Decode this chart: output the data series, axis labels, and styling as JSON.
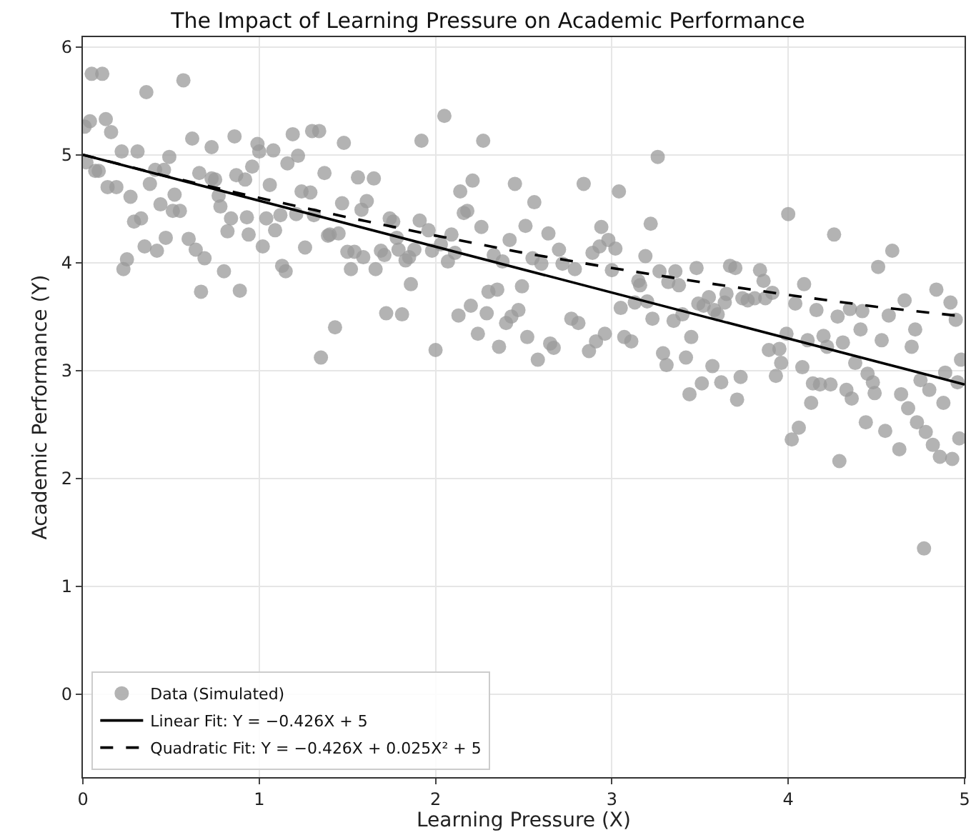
{
  "chart_data": {
    "type": "scatter",
    "title": "The Impact of Learning Pressure on Academic Performance",
    "xlabel": "Learning Pressure (X)",
    "ylabel": "Academic Performance (Y)",
    "xlim": [
      0,
      5
    ],
    "ylim": [
      -0.77,
      6.09
    ],
    "xticks": [
      0,
      1,
      2,
      3,
      4,
      5
    ],
    "yticks": [
      0,
      1,
      2,
      3,
      4,
      5,
      6
    ],
    "grid": true,
    "legend": "bottom left",
    "series": [
      {
        "name": "Data (Simulated)",
        "marker": "circle",
        "color": "#999999",
        "x": [
          0.05,
          0.11,
          0.04,
          0.01,
          0.13,
          0.16,
          0.36,
          0.57,
          0.02,
          0.07,
          0.09,
          0.14,
          0.19,
          0.22,
          0.31,
          0.27,
          0.29,
          0.33,
          0.38,
          0.41,
          0.46,
          0.49,
          0.44,
          0.52,
          0.51,
          0.55,
          0.25,
          0.23,
          0.35,
          0.42,
          0.47,
          0.6,
          0.64,
          0.69,
          0.62,
          0.73,
          0.66,
          0.73,
          0.75,
          0.77,
          0.78,
          0.84,
          0.82,
          0.8,
          0.67,
          0.89,
          0.86,
          0.87,
          0.92,
          0.96,
          0.99,
          1.0,
          1.08,
          0.93,
          0.94,
          1.02,
          1.04,
          1.06,
          1.09,
          1.12,
          1.13,
          1.15,
          1.16,
          1.19,
          1.22,
          1.24,
          1.29,
          1.21,
          1.26,
          1.3,
          1.34,
          1.37,
          1.31,
          1.4,
          1.43,
          1.35,
          1.48,
          1.56,
          1.65,
          1.61,
          1.58,
          1.47,
          1.39,
          1.45,
          1.5,
          1.54,
          1.59,
          1.52,
          1.66,
          1.69,
          1.71,
          1.74,
          1.76,
          1.78,
          1.79,
          1.83,
          1.85,
          1.88,
          1.86,
          1.91,
          1.92,
          1.96,
          1.98,
          2.03,
          2.05,
          2.09,
          2.07,
          2.11,
          1.72,
          1.81,
          2.0,
          2.14,
          2.21,
          2.16,
          2.18,
          2.26,
          2.13,
          2.2,
          2.24,
          2.29,
          2.3,
          2.35,
          2.27,
          2.33,
          2.38,
          2.36,
          2.42,
          2.4,
          2.43,
          2.47,
          2.45,
          2.51,
          2.49,
          2.52,
          2.56,
          2.55,
          2.6,
          2.64,
          2.58,
          2.65,
          2.67,
          2.7,
          2.72,
          2.77,
          2.81,
          2.79,
          2.84,
          2.87,
          2.91,
          2.89,
          2.93,
          2.96,
          2.94,
          2.98,
          3.02,
          3.0,
          3.26,
          3.04,
          3.22,
          3.19,
          3.27,
          3.36,
          3.15,
          3.16,
          3.32,
          3.38,
          3.48,
          3.67,
          3.7,
          3.84,
          3.86,
          3.91,
          3.05,
          3.13,
          3.2,
          3.23,
          3.35,
          3.4,
          3.49,
          3.52,
          3.55,
          3.58,
          3.6,
          3.64,
          3.65,
          3.74,
          3.77,
          3.81,
          3.87,
          3.07,
          3.11,
          3.29,
          3.31,
          3.42,
          3.45,
          3.57,
          3.51,
          3.44,
          3.62,
          3.73,
          3.71,
          3.89,
          3.95,
          3.96,
          3.93,
          4.0,
          4.04,
          4.09,
          3.99,
          4.08,
          4.11,
          4.14,
          4.18,
          4.24,
          4.13,
          4.06,
          4.02,
          4.16,
          4.2,
          4.22,
          4.26,
          4.28,
          4.31,
          4.33,
          4.36,
          4.35,
          4.38,
          4.42,
          4.41,
          4.29,
          4.44,
          4.45,
          4.48,
          4.49,
          4.51,
          4.53,
          4.55,
          4.59,
          4.57,
          4.63,
          4.64,
          4.66,
          4.68,
          4.7,
          4.72,
          4.73,
          4.75,
          4.77,
          4.78,
          4.8,
          4.82,
          4.84,
          4.86,
          4.88,
          4.89,
          4.92,
          4.93,
          4.95,
          4.96,
          4.97,
          4.98
        ],
        "values": [
          5.75,
          5.75,
          5.31,
          5.26,
          5.33,
          5.21,
          5.58,
          5.69,
          4.93,
          4.85,
          4.85,
          4.7,
          4.7,
          5.03,
          5.03,
          4.61,
          4.38,
          4.41,
          4.73,
          4.86,
          4.86,
          4.98,
          4.54,
          4.63,
          4.48,
          4.48,
          4.03,
          3.94,
          4.15,
          4.11,
          4.23,
          4.22,
          4.12,
          4.04,
          5.15,
          5.07,
          4.83,
          4.78,
          4.77,
          4.62,
          4.52,
          4.41,
          4.29,
          3.92,
          3.73,
          3.74,
          5.17,
          4.81,
          4.77,
          4.89,
          5.1,
          5.03,
          5.04,
          4.42,
          4.26,
          4.15,
          4.41,
          4.72,
          4.3,
          4.44,
          3.97,
          3.92,
          4.92,
          5.19,
          4.99,
          4.66,
          4.65,
          4.45,
          4.14,
          5.22,
          5.22,
          4.83,
          4.44,
          4.26,
          3.4,
          3.12,
          5.11,
          4.79,
          4.78,
          4.57,
          4.49,
          4.55,
          4.25,
          4.27,
          4.1,
          4.1,
          4.05,
          3.94,
          3.94,
          4.11,
          4.07,
          4.41,
          4.38,
          4.23,
          4.12,
          4.02,
          4.05,
          4.12,
          3.8,
          4.39,
          5.13,
          4.3,
          4.11,
          4.17,
          5.36,
          4.26,
          4.01,
          4.09,
          3.53,
          3.52,
          3.19,
          4.66,
          4.76,
          4.46,
          4.48,
          4.33,
          3.51,
          3.6,
          3.34,
          3.53,
          3.73,
          3.75,
          5.13,
          4.07,
          4.01,
          3.22,
          4.21,
          3.44,
          3.5,
          3.56,
          4.73,
          4.34,
          3.78,
          3.31,
          4.56,
          4.04,
          3.99,
          4.27,
          3.1,
          3.25,
          3.21,
          4.12,
          3.99,
          3.48,
          3.44,
          3.94,
          4.73,
          3.18,
          3.27,
          4.09,
          4.15,
          3.34,
          4.33,
          4.21,
          4.13,
          3.93,
          4.98,
          4.66,
          4.36,
          4.06,
          3.92,
          3.92,
          3.83,
          3.79,
          3.82,
          3.79,
          3.95,
          3.97,
          3.95,
          3.93,
          3.83,
          3.72,
          3.58,
          3.63,
          3.64,
          3.48,
          3.46,
          3.52,
          3.62,
          3.6,
          3.68,
          3.56,
          3.52,
          3.63,
          3.71,
          3.67,
          3.65,
          3.67,
          3.67,
          3.31,
          3.27,
          3.16,
          3.05,
          3.12,
          3.31,
          3.04,
          2.88,
          2.78,
          2.89,
          2.94,
          2.73,
          3.19,
          3.2,
          3.07,
          2.95,
          4.45,
          3.62,
          3.8,
          3.34,
          3.03,
          3.28,
          2.88,
          2.87,
          2.87,
          2.7,
          2.47,
          2.36,
          3.56,
          3.32,
          3.22,
          4.26,
          3.5,
          3.26,
          2.82,
          2.74,
          3.57,
          3.07,
          3.55,
          3.38,
          2.16,
          2.52,
          2.97,
          2.89,
          2.79,
          3.96,
          3.28,
          2.44,
          4.11,
          3.51,
          2.27,
          2.78,
          3.65,
          2.65,
          3.22,
          3.38,
          2.52,
          2.91,
          1.35,
          2.43,
          2.82,
          2.31,
          3.75,
          2.2,
          2.7,
          2.98,
          3.63,
          2.18,
          3.47,
          2.89,
          2.37,
          3.1
        ]
      },
      {
        "name": "Linear Fit: Y = −0.426X + 5",
        "type": "line",
        "marker": "none",
        "line_style": "solid",
        "color": "#000000",
        "x": [
          0,
          5
        ],
        "values": [
          5,
          2.87
        ]
      },
      {
        "name": "Quadratic Fit: Y = −0.426X + 0.025X² + 5",
        "type": "line",
        "marker": "none",
        "line_style": "dashed",
        "color": "#000000",
        "x": [
          0,
          0.5,
          1,
          1.5,
          2,
          2.5,
          3,
          3.5,
          4,
          4.5,
          5
        ],
        "values": [
          5,
          4.79,
          4.6,
          4.42,
          4.25,
          4.09,
          3.95,
          3.82,
          3.7,
          3.59,
          3.5
        ]
      }
    ]
  }
}
